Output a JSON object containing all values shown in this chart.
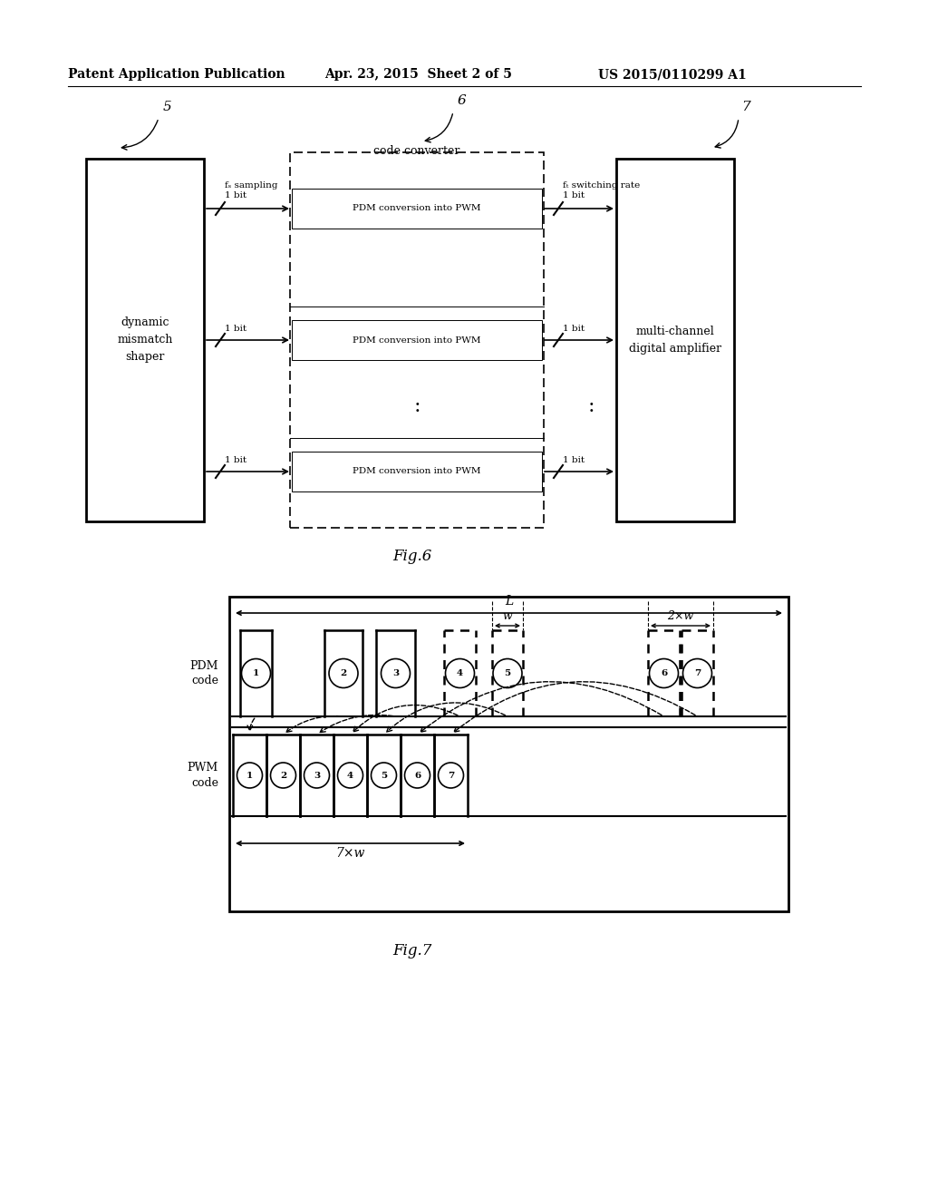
{
  "bg_color": "#ffffff",
  "header_text": "Patent Application Publication",
  "header_date": "Apr. 23, 2015  Sheet 2 of 5",
  "header_patent": "US 2015/0110299 A1",
  "fig6_label": "Fig.6",
  "fig7_label": "Fig.7",
  "box5_label": "5",
  "box6_label": "6",
  "box7_label": "7",
  "box5_text": "dynamic\nmismatch\nshaper",
  "box6_title": "code converter",
  "box7_text": "multi-channel\ndigital amplifier",
  "fs_label": "fₛ sampling\n1 bit",
  "fsw_label": "fₜ switching rate\n1 bit",
  "pdm_text": "PDM conversion into PWM",
  "fig7_pdm_label": "PDM\ncode",
  "fig7_pwm_label": "PWM\ncode",
  "fig7_L_label": "L",
  "fig7_w_label": "w",
  "fig7_2w_label": "2×w",
  "fig7_7w_label": "7×w"
}
